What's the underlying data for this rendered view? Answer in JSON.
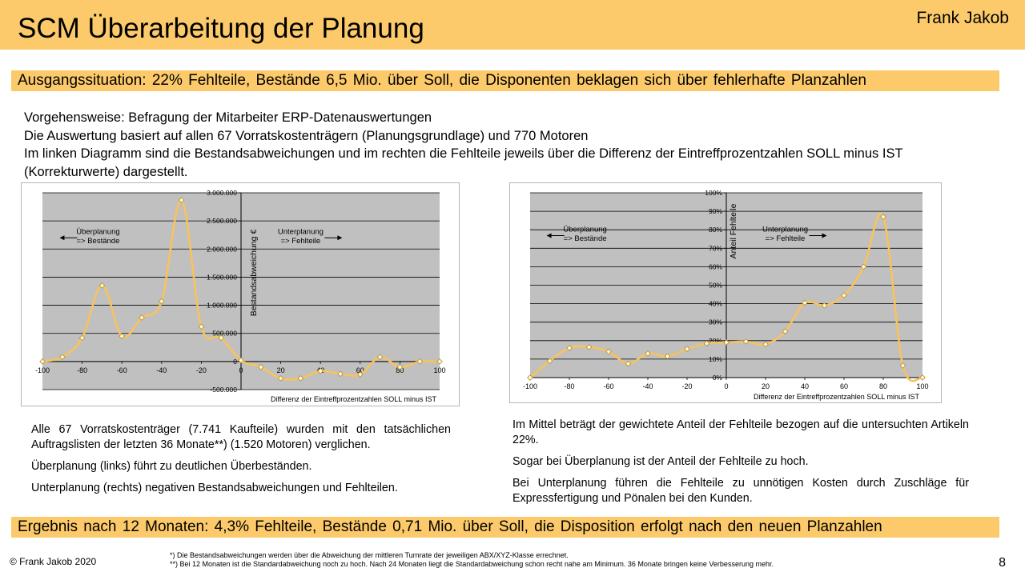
{
  "slide": {
    "title": "SCM Überarbeitung der Planung",
    "author": "Frank Jakob",
    "situation": "Ausgangssituation: 22% Fehlteile, Bestände 6,5 Mio. über Soll, die Disponenten beklagen sich über fehlerhafte Planzahlen",
    "intro": [
      "Vorgehensweise: Befragung der Mitarbeiter ERP-Datenauswertungen",
      "Die Auswertung basiert auf allen 67 Vorratskostenträgern (Planungsgrundlage) und 770 Motoren",
      "Im linken Diagramm sind die Bestandsabweichungen und im rechten die Fehlteile jeweils über die Differenz der Eintreffprozentzahlen SOLL minus IST (Korrekturwerte) dargestellt."
    ],
    "notes_left": [
      "Alle 67 Vorratskostenträger (7.741 Kaufteile) wurden mit den tatsächlichen Auftragslisten der letzten 36 Monate**) (1.520 Motoren) verglichen.",
      "Überplanung (links) führt zu deutlichen Überbeständen.",
      "Unterplanung (rechts) negativen Bestandsabweichungen und Fehlteilen."
    ],
    "notes_right": [
      "Im Mittel beträgt der gewichtete Anteil der Fehlteile bezogen auf die untersuchten Artikeln 22%.",
      "Sogar bei Überplanung ist der Anteil der Fehlteile zu hoch.",
      "Bei Unterplanung führen die Fehlteile zu unnötigen Kosten durch Zuschläge für Expressfertigung und Pönalen bei den Kunden."
    ],
    "result": "Ergebnis nach 12 Monaten: 4,3% Fehlteile, Bestände 0,71 Mio. über Soll, die Disposition erfolgt nach den neuen Planzahlen",
    "copyright": "© Frank Jakob 2020",
    "footnotes": [
      "*) Die Bestandsabweichungen werden über die Abweichung der mittleren Turnrate der jeweiligen ABX/XYZ-Klasse errechnet.",
      "**) Bei 12 Monaten ist die Standardabweichung noch zu hoch. Nach 24 Monaten liegt die Standardabweichung schon recht nahe am Minimum.  36 Monate bringen keine Verbesserung mehr."
    ],
    "page_number": "8"
  },
  "colors": {
    "accent": "#fcca6a",
    "plot_background": "#c0c0c0",
    "series_line": "#f9c25c",
    "marker_fill": "#fffbd0",
    "marker_stroke": "#b38a2e"
  },
  "chart_data": [
    {
      "type": "line",
      "xlabel": "Differenz der Eintreffprozentzahlen SOLL minus IST",
      "ylabel": "Bestandsabweichung  €",
      "xlim": [
        -100,
        100
      ],
      "ylim": [
        -500000,
        3000000
      ],
      "x_ticks": [
        -100,
        -80,
        -60,
        -40,
        -20,
        0,
        20,
        40,
        60,
        80,
        100
      ],
      "x_tick_labels": [
        "-100",
        "-80",
        "-60",
        "-40",
        "-20",
        "0",
        "20",
        "40",
        "60",
        "80",
        "100"
      ],
      "y_ticks": [
        -500000,
        0,
        500000,
        1000000,
        1500000,
        2000000,
        2500000,
        3000000
      ],
      "y_tick_labels": [
        "-500.000",
        "0",
        "500.000",
        "1.000.000",
        "1.500.000",
        "2.000.000",
        "2.500.000",
        "3.000.000"
      ],
      "grid": true,
      "annotations": [
        {
          "lines": [
            "Überplanung",
            "=> Bestände"
          ],
          "x": -72,
          "y": 2270000,
          "arrow": "left"
        },
        {
          "lines": [
            "Unterplanung",
            "=> Fehlteile"
          ],
          "x": 30,
          "y": 2270000,
          "arrow": "right"
        }
      ],
      "x": [
        -100,
        -90,
        -80,
        -70,
        -60,
        -50,
        -40,
        -30,
        -20,
        -10,
        0,
        10,
        20,
        30,
        40,
        50,
        60,
        70,
        80,
        90,
        100
      ],
      "values": [
        0,
        80000,
        420000,
        1350000,
        450000,
        780000,
        1070000,
        2870000,
        620000,
        420000,
        20000,
        -100000,
        -300000,
        -300000,
        -170000,
        -220000,
        -230000,
        80000,
        -100000,
        0,
        0
      ]
    },
    {
      "type": "line",
      "xlabel": "Differenz der Eintreffprozentzahlen SOLL minus IST",
      "ylabel": "Anteil Fehlteile",
      "xlim": [
        -100,
        100
      ],
      "ylim": [
        0,
        100
      ],
      "x_ticks": [
        -100,
        -80,
        -60,
        -40,
        -20,
        0,
        20,
        40,
        60,
        80,
        100
      ],
      "x_tick_labels": [
        "-100",
        "-80",
        "-60",
        "-40",
        "-20",
        "0",
        "20",
        "40",
        "60",
        "80",
        "100"
      ],
      "y_ticks": [
        0,
        10,
        20,
        30,
        40,
        50,
        60,
        70,
        80,
        90,
        100
      ],
      "y_tick_labels": [
        "0%",
        "10%",
        "20%",
        "30%",
        "40%",
        "50%",
        "60%",
        "70%",
        "80%",
        "90%",
        "100%"
      ],
      "grid": true,
      "annotations": [
        {
          "lines": [
            "Überplanung",
            "=> Bestände"
          ],
          "x": -72,
          "y": 79,
          "arrow": "left"
        },
        {
          "lines": [
            "Unterplanung",
            "=> Fehlteile"
          ],
          "x": 30,
          "y": 79,
          "arrow": "right"
        }
      ],
      "x": [
        -100,
        -90,
        -80,
        -70,
        -60,
        -50,
        -40,
        -30,
        -20,
        -10,
        0,
        10,
        20,
        30,
        40,
        50,
        60,
        70,
        80,
        90,
        100
      ],
      "values": [
        0,
        9,
        16,
        16.5,
        14,
        7.5,
        13,
        11.5,
        15.5,
        18.5,
        19,
        19.5,
        18,
        25,
        40.5,
        39,
        44.5,
        60,
        87,
        6.5,
        0
      ]
    }
  ]
}
